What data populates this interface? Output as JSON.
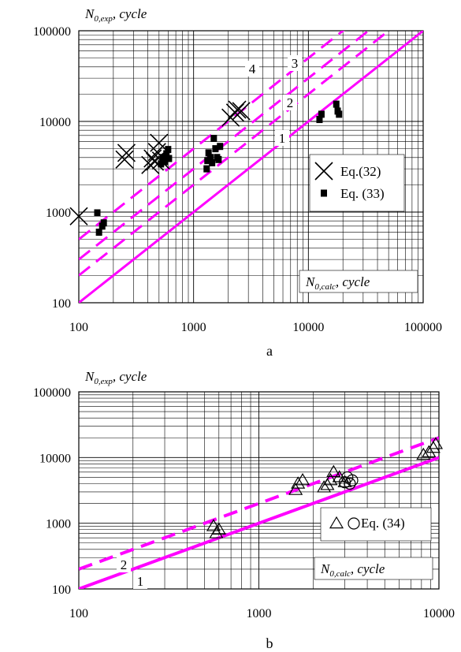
{
  "chart_data": [
    {
      "type": "scatter",
      "panel_label": "a",
      "xscale": "log",
      "yscale": "log",
      "xlim": [
        100,
        100000
      ],
      "ylim": [
        100,
        100000
      ],
      "xticks": [
        "100",
        "1000",
        "10000",
        "100000"
      ],
      "yticks": [
        "100",
        "1000",
        "10000",
        "100000"
      ],
      "ylabel": {
        "symbol": "N",
        "subscript": "0,exp",
        "unit": "cycle"
      },
      "xlabel": {
        "symbol": "N",
        "subscript": "0,calc",
        "unit": "cycle"
      },
      "grid": true,
      "legend_position": "right",
      "color": "#ff00ff",
      "lines": [
        {
          "label": "1",
          "factor": 1,
          "style": "solid"
        },
        {
          "label": "2",
          "factor": 2,
          "style": "dashed"
        },
        {
          "label": "3",
          "factor": 3,
          "style": "dashed"
        },
        {
          "label": "4",
          "factor": 5,
          "style": "dashed"
        }
      ],
      "series": [
        {
          "name": "Eq.(32)",
          "marker": "x",
          "points": [
            [
              100,
              900
            ],
            [
              250,
              3800
            ],
            [
              260,
              4500
            ],
            [
              420,
              3300
            ],
            [
              440,
              3900
            ],
            [
              460,
              3600
            ],
            [
              480,
              4600
            ],
            [
              500,
              5800
            ],
            [
              520,
              3700
            ],
            [
              2100,
              11000
            ],
            [
              2300,
              12500
            ],
            [
              2400,
              13500
            ],
            [
              2600,
              13000
            ]
          ]
        },
        {
          "name": "Eq. (33)",
          "marker": "square",
          "points": [
            [
              145,
              980
            ],
            [
              150,
              600
            ],
            [
              160,
              700
            ],
            [
              165,
              760
            ],
            [
              520,
              3400
            ],
            [
              540,
              4000
            ],
            [
              560,
              3600
            ],
            [
              580,
              4400
            ],
            [
              600,
              4900
            ],
            [
              610,
              3900
            ],
            [
              1300,
              3000
            ],
            [
              1320,
              3700
            ],
            [
              1350,
              4500
            ],
            [
              1400,
              4000
            ],
            [
              1450,
              3500
            ],
            [
              1500,
              6500
            ],
            [
              1550,
              5000
            ],
            [
              1600,
              4000
            ],
            [
              1650,
              3800
            ],
            [
              1700,
              5300
            ],
            [
              12500,
              10500
            ],
            [
              13000,
              12000
            ],
            [
              17500,
              15500
            ],
            [
              18000,
              13000
            ],
            [
              18500,
              12000
            ]
          ]
        }
      ]
    },
    {
      "type": "scatter",
      "panel_label": "b",
      "xscale": "log",
      "yscale": "log",
      "xlim": [
        100,
        10000
      ],
      "ylim": [
        100,
        100000
      ],
      "xticks": [
        "100",
        "1000",
        "10000"
      ],
      "yticks": [
        "100",
        "1000",
        "10000",
        "100000"
      ],
      "ylabel": {
        "symbol": "N",
        "subscript": "0,exp",
        "unit": "cycle"
      },
      "xlabel": {
        "symbol": "N",
        "subscript": "0,calc",
        "unit": "cycle"
      },
      "grid": true,
      "legend_position": "bottom-right",
      "color": "#ff00ff",
      "lines": [
        {
          "label": "1",
          "factor": 1,
          "style": "solid"
        },
        {
          "label": "2",
          "factor": 2,
          "style": "dashed"
        }
      ],
      "series": [
        {
          "name": "Eq. (34)",
          "marker": "triangle",
          "points": [
            [
              560,
              900
            ],
            [
              580,
              700
            ],
            [
              600,
              800
            ],
            [
              1600,
              3200
            ],
            [
              1650,
              4000
            ],
            [
              1750,
              4500
            ],
            [
              2300,
              3500
            ],
            [
              2400,
              3800
            ],
            [
              2500,
              4500
            ],
            [
              2600,
              6000
            ],
            [
              2800,
              5000
            ],
            [
              3000,
              4200
            ],
            [
              8200,
              11000
            ],
            [
              8800,
              12000
            ],
            [
              9300,
              14000
            ],
            [
              9600,
              16000
            ]
          ]
        },
        {
          "name": "",
          "marker": "circle",
          "points": [
            [
              3000,
              4200
            ],
            [
              3100,
              5000
            ],
            [
              3200,
              4000
            ],
            [
              3300,
              4500
            ]
          ]
        }
      ]
    }
  ]
}
